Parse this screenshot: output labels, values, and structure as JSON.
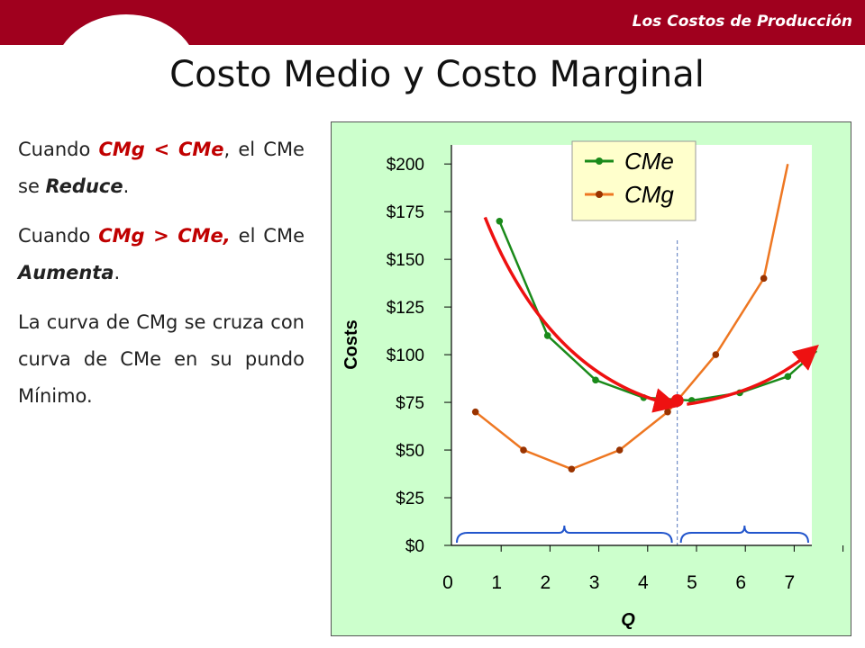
{
  "header": {
    "section_label": "Los Costos de Producción"
  },
  "slide": {
    "title": "Costo Medio y Costo Marginal"
  },
  "text": {
    "p1": {
      "a": "Cuando ",
      "red": "CMg < CMe",
      "b": ", el CMe se ",
      "em": "Reduce",
      "c": "."
    },
    "p2": {
      "a": "Cuando ",
      "red": "CMg > CMe,",
      "b": " el CMe ",
      "em": "Aumenta",
      "c": "."
    },
    "p3": "La curva de CMg se cruza con curva de CMe en su pundo Mínimo."
  },
  "chart_data": {
    "type": "line",
    "xlabel": "Q",
    "ylabel": "Costs",
    "xlim": [
      0,
      7.5
    ],
    "ylim": [
      0,
      210
    ],
    "x_ticks": [
      "0",
      "1",
      "2",
      "3",
      "4",
      "5",
      "6",
      "7"
    ],
    "y_ticks": [
      "$0",
      "$25",
      "$50",
      "$75",
      "$100",
      "$125",
      "$150",
      "$175",
      "$200"
    ],
    "y_tick_values": [
      0,
      25,
      50,
      75,
      100,
      125,
      150,
      175,
      200
    ],
    "legend_position": "top-right",
    "colors": {
      "cme": "#1a8a1a",
      "cmg": "#ee7722",
      "arrow": "#ee1111",
      "brace": "#2255cc",
      "divider": "#5577bb",
      "minimum": "#ee1111"
    },
    "series": [
      {
        "name": "CMe",
        "x": [
          1,
          2,
          3,
          4,
          5,
          6,
          7
        ],
        "y": [
          170,
          110,
          86.67,
          77.5,
          76,
          80,
          88.57
        ],
        "color": "#1a8a1a"
      },
      {
        "name": "CMg",
        "x": [
          0.5,
          1.5,
          2.5,
          3.5,
          4.5,
          5.5,
          6.5
        ],
        "y": [
          70,
          50,
          40,
          50,
          70,
          100,
          140
        ],
        "color": "#ee7722"
      }
    ],
    "minimum_point": {
      "x": 4.7,
      "y": 76
    },
    "divider_x": 4.7
  }
}
